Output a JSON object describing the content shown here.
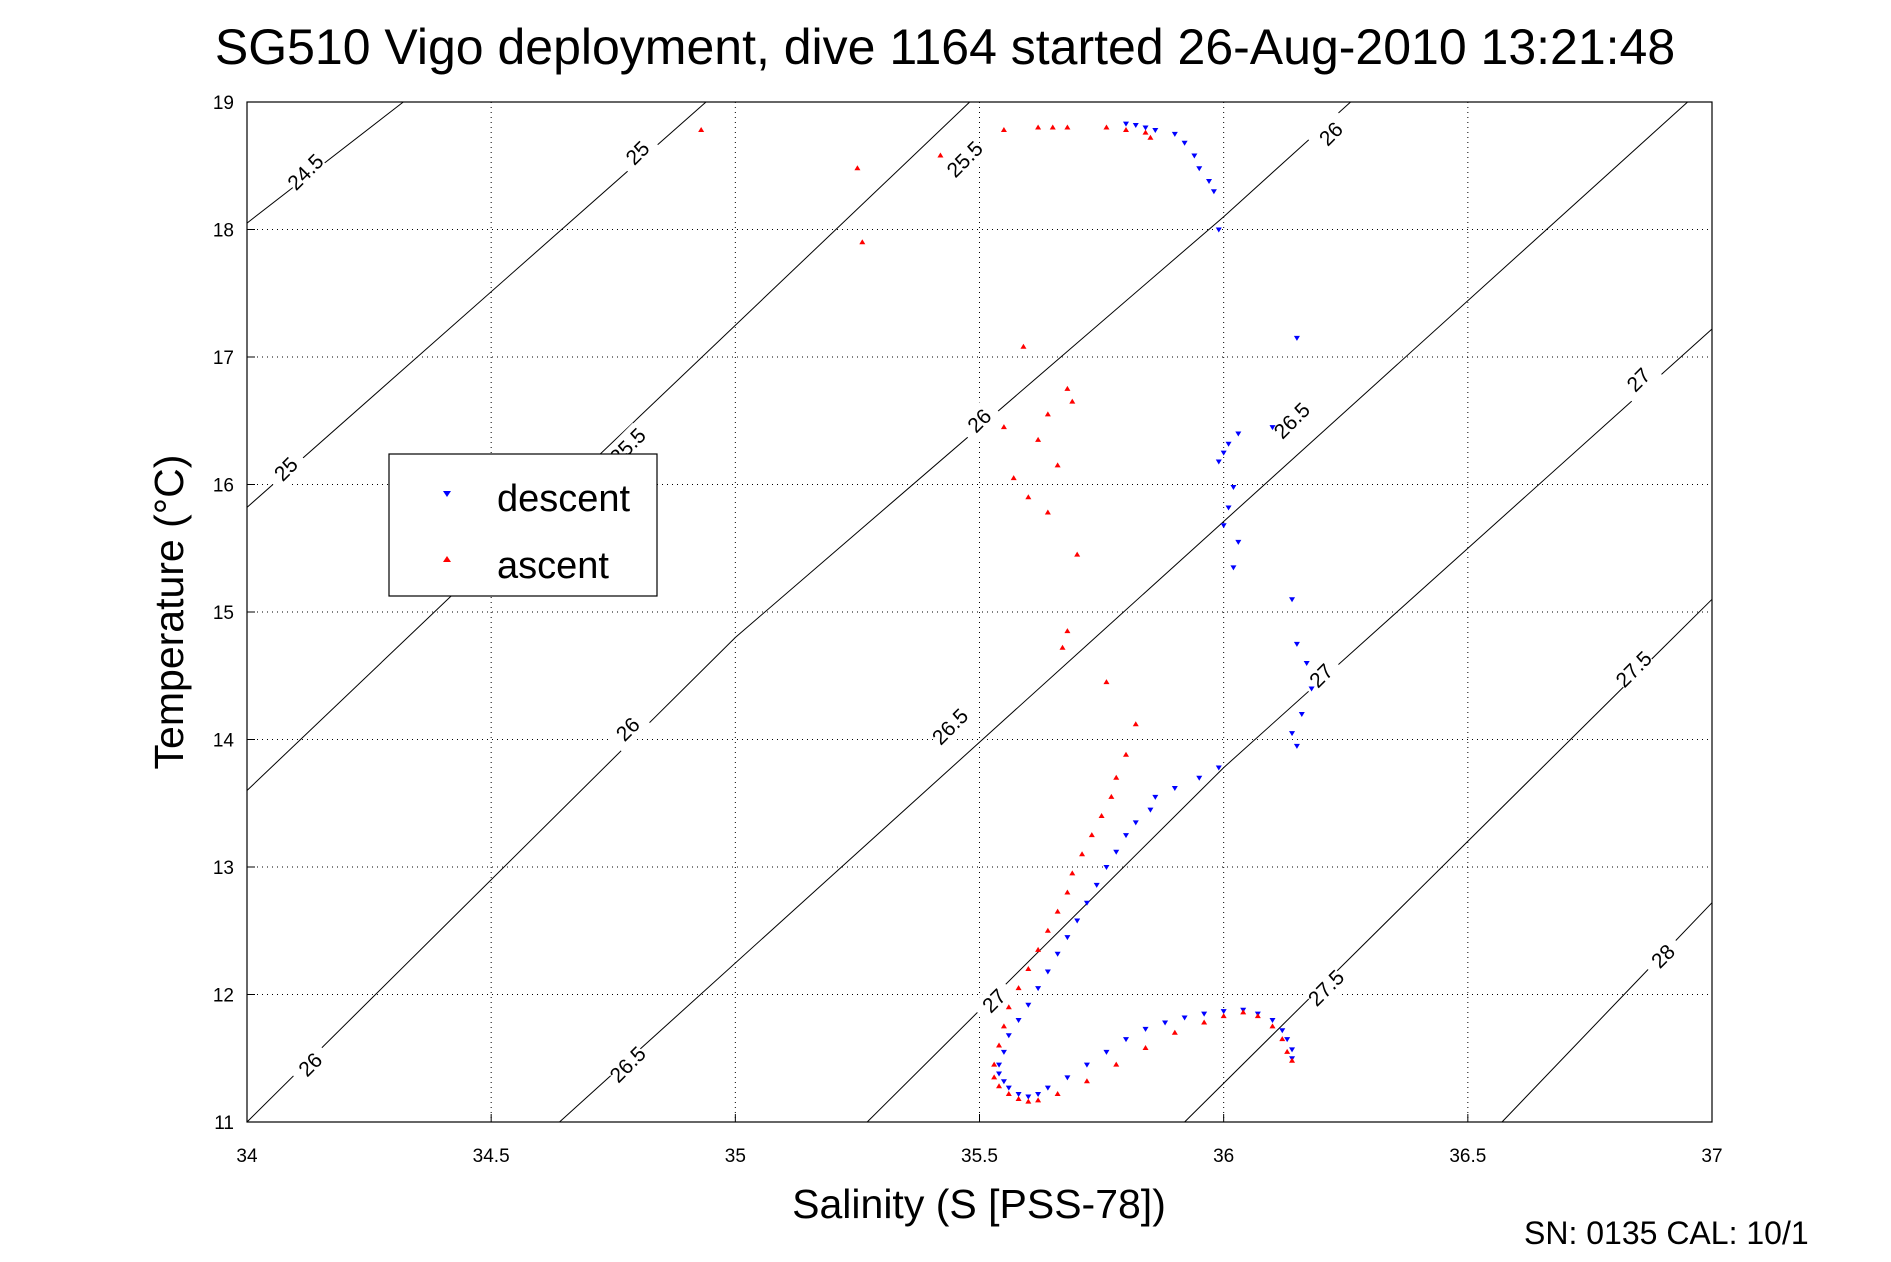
{
  "title": "SG510 Vigo deployment, dive 1164 started 26-Aug-2010 13:21:48",
  "footer": "SN: 0135  CAL: 10/1",
  "chart_data": {
    "type": "scatter",
    "title": "SG510 Vigo deployment, dive 1164 started 26-Aug-2010 13:21:48",
    "xlabel": "Salinity (S [PSS-78])",
    "ylabel": "Temperature (°C)",
    "xlim": [
      34,
      37
    ],
    "ylim": [
      11,
      19
    ],
    "xticks": [
      "34",
      "34.5",
      "35",
      "35.5",
      "36",
      "36.5",
      "37"
    ],
    "yticks": [
      "11",
      "12",
      "13",
      "14",
      "15",
      "16",
      "17",
      "18",
      "19"
    ],
    "grid": true,
    "legend": {
      "position": "left",
      "entries": [
        "descent",
        "ascent"
      ]
    },
    "colors": {
      "descent": "#0000ff",
      "ascent": "#ff0000"
    },
    "contours": {
      "labels": [
        "24.5",
        "25",
        "25.5",
        "26",
        "26.5",
        "27",
        "27.5",
        "28"
      ],
      "lines": [
        {
          "label": "24.5",
          "points": [
            [
              34.0,
              18.05
            ],
            [
              34.32,
              19.0
            ]
          ]
        },
        {
          "label": "25",
          "points": [
            [
              34.0,
              15.82
            ],
            [
              34.94,
              19.0
            ]
          ]
        },
        {
          "label": "25.5",
          "points": [
            [
              34.0,
              13.6
            ],
            [
              35.48,
              19.0
            ]
          ]
        },
        {
          "label": "26",
          "points": [
            [
              34.0,
              11.0
            ],
            [
              35.0,
              14.8
            ],
            [
              36.0,
              18.1
            ],
            [
              36.26,
              19.0
            ]
          ]
        },
        {
          "label": "26.5",
          "points": [
            [
              34.64,
              11.0
            ],
            [
              36.95,
              19.0
            ]
          ]
        },
        {
          "label": "27",
          "points": [
            [
              35.27,
              11.0
            ],
            [
              36.0,
              13.78
            ],
            [
              37.0,
              17.22
            ]
          ]
        },
        {
          "label": "27.5",
          "points": [
            [
              35.92,
              11.0
            ],
            [
              37.0,
              15.1
            ]
          ]
        },
        {
          "label": "28",
          "points": [
            [
              36.57,
              11.0
            ],
            [
              37.0,
              12.72
            ]
          ]
        }
      ],
      "label_positions": [
        {
          "text": "24.5",
          "s": 34.12,
          "t": 18.45
        },
        {
          "text": "25",
          "s": 34.8,
          "t": 18.6
        },
        {
          "text": "25",
          "s": 34.08,
          "t": 16.12
        },
        {
          "text": "25.5",
          "s": 35.47,
          "t": 18.55
        },
        {
          "text": "25.5",
          "s": 34.78,
          "t": 16.3
        },
        {
          "text": "26",
          "s": 36.22,
          "t": 18.75
        },
        {
          "text": "26",
          "s": 35.5,
          "t": 16.5
        },
        {
          "text": "26",
          "s": 34.78,
          "t": 14.08
        },
        {
          "text": "26",
          "s": 34.13,
          "t": 11.45
        },
        {
          "text": "26.5",
          "s": 36.14,
          "t": 16.5
        },
        {
          "text": "26.5",
          "s": 35.44,
          "t": 14.1
        },
        {
          "text": "26.5",
          "s": 34.78,
          "t": 11.45
        },
        {
          "text": "27",
          "s": 36.85,
          "t": 16.82
        },
        {
          "text": "27",
          "s": 36.2,
          "t": 14.5
        },
        {
          "text": "27",
          "s": 35.53,
          "t": 11.95
        },
        {
          "text": "27.5",
          "s": 36.84,
          "t": 14.55
        },
        {
          "text": "27.5",
          "s": 36.21,
          "t": 12.05
        },
        {
          "text": "28",
          "s": 36.9,
          "t": 12.3
        }
      ]
    },
    "series": [
      {
        "name": "descent",
        "marker": "triangle-down",
        "x": [
          35.8,
          35.82,
          35.84,
          35.86,
          35.9,
          35.92,
          35.94,
          35.95,
          35.97,
          35.98,
          35.99,
          36.15,
          36.1,
          36.03,
          36.01,
          36.0,
          35.99,
          36.02,
          36.01,
          36.0,
          36.03,
          36.02,
          36.14,
          36.15,
          36.17,
          36.18,
          36.16,
          36.14,
          36.15,
          35.99,
          35.95,
          35.9,
          35.86,
          35.85,
          35.82,
          35.8,
          35.78,
          35.76,
          35.74,
          35.72,
          35.7,
          35.68,
          35.66,
          35.64,
          35.62,
          35.6,
          35.58,
          35.56,
          35.55,
          35.54,
          35.54,
          35.55,
          35.56,
          35.58,
          35.6,
          35.62,
          35.64,
          35.68,
          35.72,
          35.76,
          35.8,
          35.84,
          35.88,
          35.92,
          35.96,
          36.0,
          36.04,
          36.07,
          36.1,
          36.12,
          36.13,
          36.14,
          36.14
        ],
        "y": [
          18.83,
          18.82,
          18.8,
          18.78,
          18.75,
          18.68,
          18.58,
          18.48,
          18.38,
          18.3,
          18.0,
          17.15,
          16.45,
          16.4,
          16.32,
          16.25,
          16.18,
          15.98,
          15.82,
          15.68,
          15.55,
          15.35,
          15.1,
          14.75,
          14.6,
          14.4,
          14.2,
          14.05,
          13.95,
          13.78,
          13.7,
          13.62,
          13.55,
          13.45,
          13.35,
          13.25,
          13.12,
          13.0,
          12.86,
          12.72,
          12.58,
          12.45,
          12.32,
          12.18,
          12.05,
          11.92,
          11.8,
          11.68,
          11.55,
          11.45,
          11.38,
          11.32,
          11.27,
          11.22,
          11.2,
          11.22,
          11.27,
          11.35,
          11.45,
          11.55,
          11.65,
          11.73,
          11.78,
          11.82,
          11.85,
          11.87,
          11.88,
          11.85,
          11.8,
          11.72,
          11.65,
          11.57,
          11.5
        ]
      },
      {
        "name": "ascent",
        "marker": "triangle-up",
        "x": [
          34.93,
          35.25,
          35.42,
          35.26,
          35.55,
          35.62,
          35.65,
          35.68,
          35.76,
          35.8,
          35.84,
          35.85,
          35.59,
          35.68,
          35.69,
          35.64,
          35.55,
          35.62,
          35.66,
          35.57,
          35.6,
          35.64,
          35.7,
          35.68,
          35.67,
          35.76,
          35.82,
          35.8,
          35.78,
          35.77,
          35.75,
          35.73,
          35.71,
          35.69,
          35.68,
          35.66,
          35.64,
          35.62,
          35.6,
          35.58,
          35.56,
          35.55,
          35.54,
          35.53,
          35.53,
          35.54,
          35.56,
          35.58,
          35.6,
          35.62,
          35.66,
          35.72,
          35.78,
          35.84,
          35.9,
          35.96,
          36.0,
          36.04,
          36.07,
          36.1,
          36.12,
          36.13,
          36.14
        ],
        "y": [
          18.78,
          18.48,
          18.58,
          17.9,
          18.78,
          18.8,
          18.8,
          18.8,
          18.8,
          18.78,
          18.76,
          18.72,
          17.08,
          16.75,
          16.65,
          16.55,
          16.45,
          16.35,
          16.15,
          16.05,
          15.9,
          15.78,
          15.45,
          14.85,
          14.72,
          14.45,
          14.12,
          13.88,
          13.7,
          13.55,
          13.4,
          13.25,
          13.1,
          12.95,
          12.8,
          12.65,
          12.5,
          12.35,
          12.2,
          12.05,
          11.9,
          11.75,
          11.6,
          11.45,
          11.35,
          11.28,
          11.22,
          11.18,
          11.16,
          11.17,
          11.22,
          11.32,
          11.45,
          11.58,
          11.7,
          11.78,
          11.83,
          11.86,
          11.83,
          11.75,
          11.65,
          11.55,
          11.48
        ]
      }
    ]
  }
}
